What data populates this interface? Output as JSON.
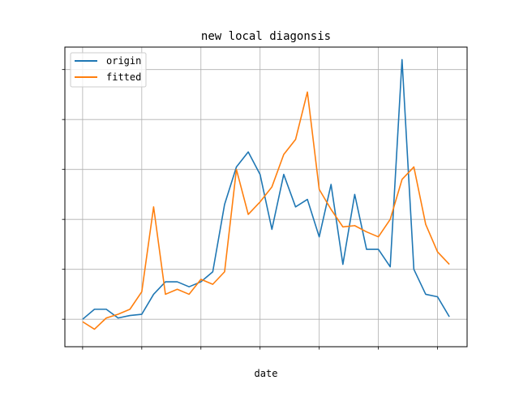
{
  "chart_data": {
    "type": "line",
    "title": "new local diagonsis",
    "xlabel": "date",
    "ylabel": "",
    "grid": true,
    "legend_position": "upper-left",
    "x": [
      0,
      1,
      2,
      3,
      4,
      5,
      6,
      7,
      8,
      9,
      10,
      11,
      12,
      13,
      14,
      15,
      16,
      17,
      18,
      19,
      20,
      21,
      22,
      23,
      24,
      25,
      26,
      27,
      28,
      29,
      30,
      31
    ],
    "xlim": [
      -1.5,
      32.5
    ],
    "ylim": [
      -11,
      109
    ],
    "series": [
      {
        "name": "origin",
        "color": "#1f77b4",
        "values": [
          0,
          4,
          4,
          0.5,
          1.5,
          2,
          10,
          15,
          15,
          13,
          15,
          19,
          46,
          61,
          67,
          58,
          36,
          58,
          45,
          48,
          33,
          54,
          22,
          50,
          28,
          28,
          21,
          104,
          20,
          10,
          9,
          1
        ]
      },
      {
        "name": "fitted",
        "color": "#ff7f0e",
        "values": [
          -1,
          -4,
          0.5,
          2,
          4,
          11,
          45,
          10,
          12,
          10,
          16,
          14,
          19,
          60,
          42,
          47,
          53,
          66,
          72,
          91,
          52,
          44,
          37,
          37.5,
          35,
          33,
          40,
          56,
          61,
          38,
          27,
          22
        ]
      }
    ]
  }
}
